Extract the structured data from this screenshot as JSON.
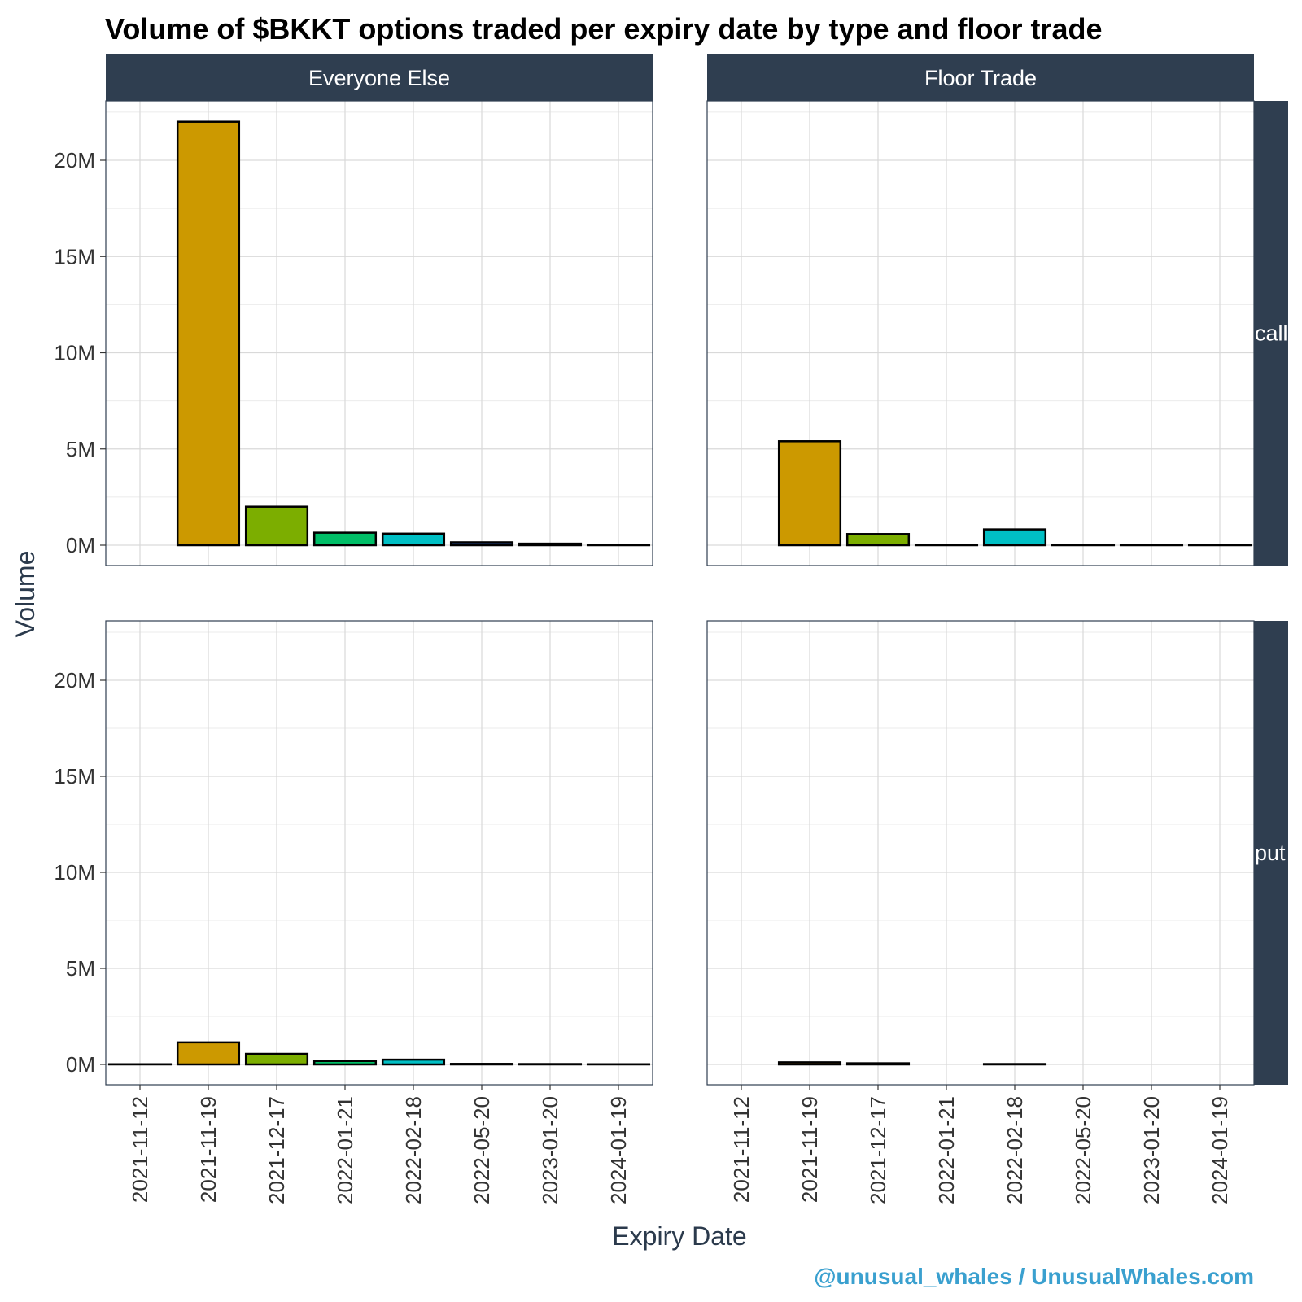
{
  "chart_data": {
    "type": "bar",
    "title": "Volume of $BKKT options traded per expiry date by type and floor trade",
    "xlabel": "Expiry Date",
    "ylabel": "Volume",
    "categories": [
      "2021-11-12",
      "2021-11-19",
      "2021-12-17",
      "2022-01-21",
      "2022-02-18",
      "2022-05-20",
      "2023-01-20",
      "2024-01-19"
    ],
    "ylim": [
      0,
      23000000
    ],
    "y_ticks": [
      0,
      5000000,
      10000000,
      15000000,
      20000000
    ],
    "y_tick_labels": [
      "0M",
      "5M",
      "10M",
      "15M",
      "20M"
    ],
    "column_facets": [
      "Everyone Else",
      "Floor Trade"
    ],
    "row_facets": [
      "call",
      "put"
    ],
    "colors": [
      "#CC9900",
      "#CC9900",
      "#7CAE00",
      "#00BE67",
      "#00BFC4",
      "#3366CC",
      "#6C5BCC",
      "#C77CFF"
    ],
    "bar_outline": "#000000",
    "strip_color": "#2f3e50",
    "grid": true,
    "legend": "none",
    "panels": [
      {
        "column": "Everyone Else",
        "row": "call",
        "values": [
          0,
          22000000,
          2000000,
          650000,
          600000,
          150000,
          80000,
          10000
        ]
      },
      {
        "column": "Floor Trade",
        "row": "call",
        "values": [
          null,
          5400000,
          580000,
          20000,
          820000,
          10000,
          10000,
          10000
        ]
      },
      {
        "column": "Everyone Else",
        "row": "put",
        "values": [
          10000,
          1150000,
          550000,
          180000,
          250000,
          30000,
          20000,
          10000
        ]
      },
      {
        "column": "Floor Trade",
        "row": "put",
        "values": [
          null,
          110000,
          60000,
          null,
          20000,
          null,
          null,
          null
        ]
      }
    ]
  },
  "footer": {
    "credit": "@unusual_whales / UnusualWhales.com"
  }
}
